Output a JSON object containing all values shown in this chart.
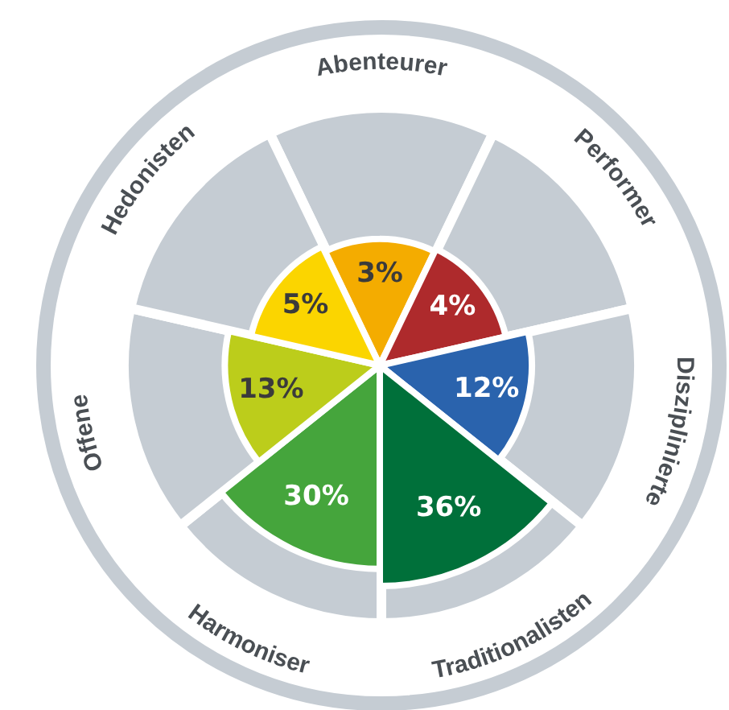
{
  "chart_data": {
    "type": "other",
    "categories": [
      "Abenteurer",
      "Performer",
      "Disziplinierte",
      "Traditionalisten",
      "Harmoniser",
      "Offene",
      "Hedonisten"
    ],
    "values": [
      3,
      4,
      12,
      36,
      30,
      13,
      5
    ],
    "colors": [
      "#f4ac00",
      "#ae2a2c",
      "#2a63ad",
      "#00703a",
      "#45a53c",
      "#bccd1b",
      "#fbd500"
    ],
    "value_labels": [
      "3%",
      "4%",
      "12%",
      "36%",
      "30%",
      "13%",
      "5%"
    ]
  }
}
